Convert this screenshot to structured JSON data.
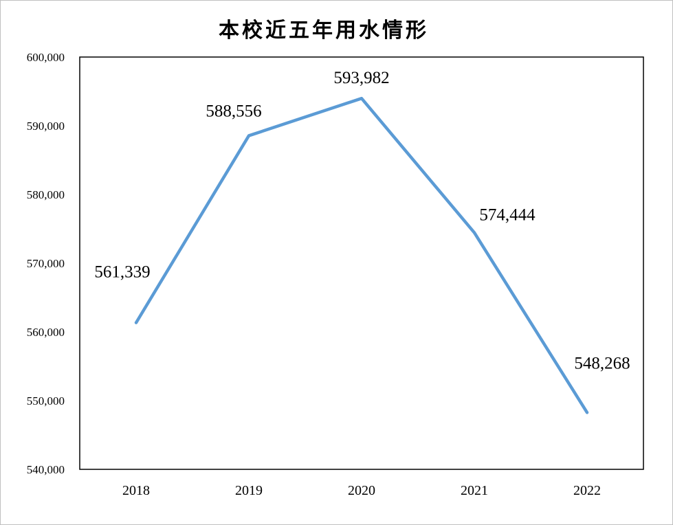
{
  "chart_data": {
    "type": "line",
    "title": "本校近五年用水情形",
    "xlabel": "",
    "ylabel": "",
    "categories": [
      "2018",
      "2019",
      "2020",
      "2021",
      "2022"
    ],
    "series": [
      {
        "values": [
          561339,
          588556,
          593982,
          574444,
          548268
        ],
        "data_labels": [
          "561,339",
          "588,556",
          "593,982",
          "574,444",
          "548,268"
        ],
        "color": "#5b9bd5"
      }
    ],
    "ylim": [
      540000,
      600000
    ],
    "y_ticks": [
      540000,
      550000,
      560000,
      570000,
      580000,
      590000,
      600000
    ],
    "y_tick_labels": [
      "540,000",
      "550,000",
      "560,000",
      "570,000",
      "580,000",
      "590,000",
      "600,000"
    ],
    "grid": false,
    "legend": "none"
  }
}
